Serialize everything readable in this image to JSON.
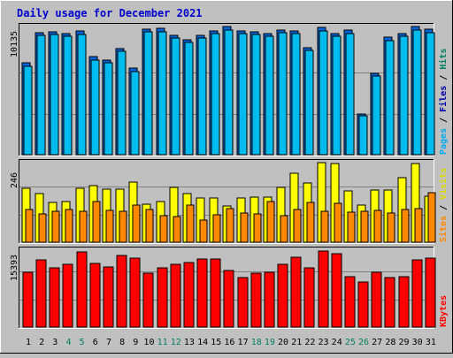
{
  "title": "Daily usage for December 2021",
  "colors": {
    "background": "#c0c0c0",
    "plot_bg": "#c0c0c0",
    "grid": "#808080",
    "title": "#0000cc",
    "hits": "#00bbee",
    "files": "#0066dd",
    "pages": "#00aaff",
    "visits": "#ffff00",
    "sites": "#ff8800",
    "kbytes": "#ff0000",
    "label_hits": "#00805c",
    "label_files": "#0000aa",
    "label_pages": "#00aaee",
    "label_visits": "#dddd00",
    "label_sites": "#ff8800",
    "label_kbytes": "#ff0000",
    "weekend_day": "#00805c",
    "weekday": "#000000"
  },
  "chart_data": [
    {
      "type": "bar",
      "panel": "top",
      "max_label": "10135",
      "ylim": [
        0,
        10135
      ],
      "right_label": [
        {
          "text": "Pages",
          "color_key": "label_pages"
        },
        {
          "text": "Files",
          "color_key": "label_files"
        },
        {
          "text": "Hits",
          "color_key": "label_hits"
        }
      ],
      "series": [
        {
          "name": "Hits",
          "values": [
            7250,
            9670,
            9740,
            9570,
            9760,
            7750,
            7490,
            8380,
            6820,
            9940,
            10000,
            9470,
            9070,
            9430,
            9790,
            10120,
            9770,
            9700,
            9590,
            9870,
            9820,
            8450,
            10050,
            9580,
            9850,
            3250,
            6460,
            9270,
            9580,
            10110,
            9900
          ]
        },
        {
          "name": "Files",
          "values": [
            7000,
            9450,
            9500,
            9350,
            9520,
            7500,
            7250,
            8150,
            6600,
            9700,
            9750,
            9250,
            8850,
            9200,
            9550,
            9880,
            9550,
            9480,
            9360,
            9630,
            9580,
            8250,
            9800,
            9350,
            9600,
            3100,
            6250,
            9050,
            9350,
            9850,
            9650
          ]
        }
      ]
    },
    {
      "type": "bar",
      "panel": "middle",
      "max_label": "246",
      "ylim": [
        0,
        246
      ],
      "right_label": [
        {
          "text": "Sites",
          "color_key": "label_sites"
        },
        {
          "text": "Visits",
          "color_key": "label_visits"
        }
      ],
      "series": [
        {
          "name": "Visits",
          "values": [
            166,
            150,
            122,
            125,
            168,
            176,
            164,
            163,
            186,
            117,
            126,
            170,
            150,
            136,
            137,
            113,
            136,
            139,
            140,
            169,
            212,
            184,
            246,
            243,
            158,
            115,
            161,
            160,
            199,
            243,
            143
          ]
        },
        {
          "name": "Sites",
          "values": [
            100,
            88,
            96,
            100,
            97,
            127,
            99,
            97,
            114,
            101,
            81,
            80,
            115,
            68,
            84,
            104,
            90,
            87,
            125,
            82,
            101,
            122,
            97,
            121,
            93,
            97,
            98,
            90,
            102,
            104,
            153
          ]
        }
      ]
    },
    {
      "type": "bar",
      "panel": "bottom",
      "max_label": "15393",
      "ylim": [
        0,
        15393
      ],
      "right_label": [
        {
          "text": "KBytes",
          "color_key": "label_kbytes"
        }
      ],
      "series": [
        {
          "name": "KBytes",
          "values": [
            10940,
            13360,
            11850,
            12480,
            15060,
            12690,
            12060,
            14380,
            13880,
            10880,
            11780,
            12500,
            12850,
            13650,
            13650,
            11400,
            9870,
            10790,
            11020,
            12630,
            13930,
            11770,
            15300,
            14720,
            10050,
            9030,
            10980,
            9880,
            10110,
            13510,
            13770
          ]
        }
      ]
    }
  ],
  "x_labels": [
    "1",
    "2",
    "3",
    "4",
    "5",
    "6",
    "7",
    "8",
    "9",
    "10",
    "11",
    "12",
    "13",
    "14",
    "15",
    "16",
    "17",
    "18",
    "19",
    "20",
    "21",
    "22",
    "23",
    "24",
    "25",
    "26",
    "27",
    "28",
    "29",
    "30",
    "31"
  ],
  "weekend_days": [
    4,
    5,
    11,
    12,
    18,
    19,
    25,
    26
  ]
}
